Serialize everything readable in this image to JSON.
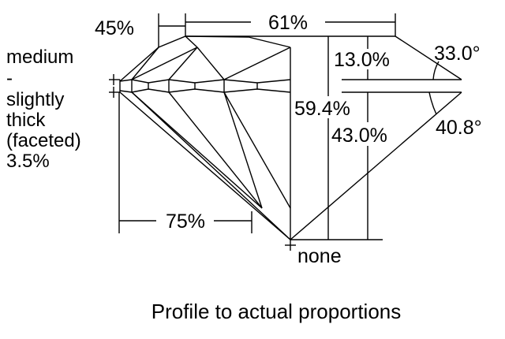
{
  "labels": {
    "table_pct": "61%",
    "star_pct": "45%",
    "girdle_lines": [
      "medium",
      "-",
      "slightly",
      "thick",
      "(faceted)",
      "3.5%"
    ],
    "crown_height": "13.0%",
    "crown_angle": "33.0°",
    "total_depth": "59.4%",
    "pavilion_depth": "43.0%",
    "pavilion_angle": "40.8°",
    "lower_half": "75%",
    "culet": "none"
  },
  "caption": "Profile to actual proportions"
}
